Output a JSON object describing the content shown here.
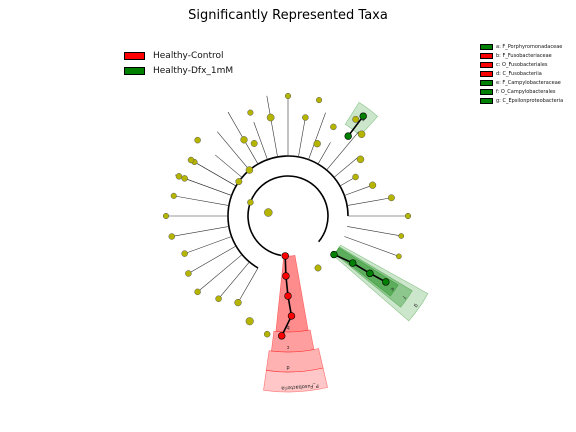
{
  "title": "Significantly Represented Taxa",
  "colors": {
    "healthy_control": "#ff0000",
    "healthy_dfx": "#008000",
    "node": "#b5b500"
  },
  "legend": [
    {
      "label": "Healthy-Control",
      "color": "#ff0000"
    },
    {
      "label": "Healthy-Dfx_1mM",
      "color": "#008000"
    }
  ],
  "key": [
    {
      "label": "a: F_Porphyromonadaceae",
      "group": "healthy_dfx"
    },
    {
      "label": "b: F_Fusobacteriaceae",
      "group": "healthy_control"
    },
    {
      "label": "c: O_Fusobacteriales",
      "group": "healthy_control"
    },
    {
      "label": "d: C_Fusobacteriia",
      "group": "healthy_control"
    },
    {
      "label": "e: F_Campylobacteraceae",
      "group": "healthy_dfx"
    },
    {
      "label": "f: O_Campylobacterales",
      "group": "healthy_dfx"
    },
    {
      "label": "g: C_Epsilonproteobacteria",
      "group": "healthy_dfx"
    }
  ],
  "clade_labels": {
    "a": "a",
    "b": "b",
    "c": "c",
    "d": "d",
    "e": "e",
    "f": "f",
    "g": "g",
    "phylum": "P_Fusobacteria"
  }
}
